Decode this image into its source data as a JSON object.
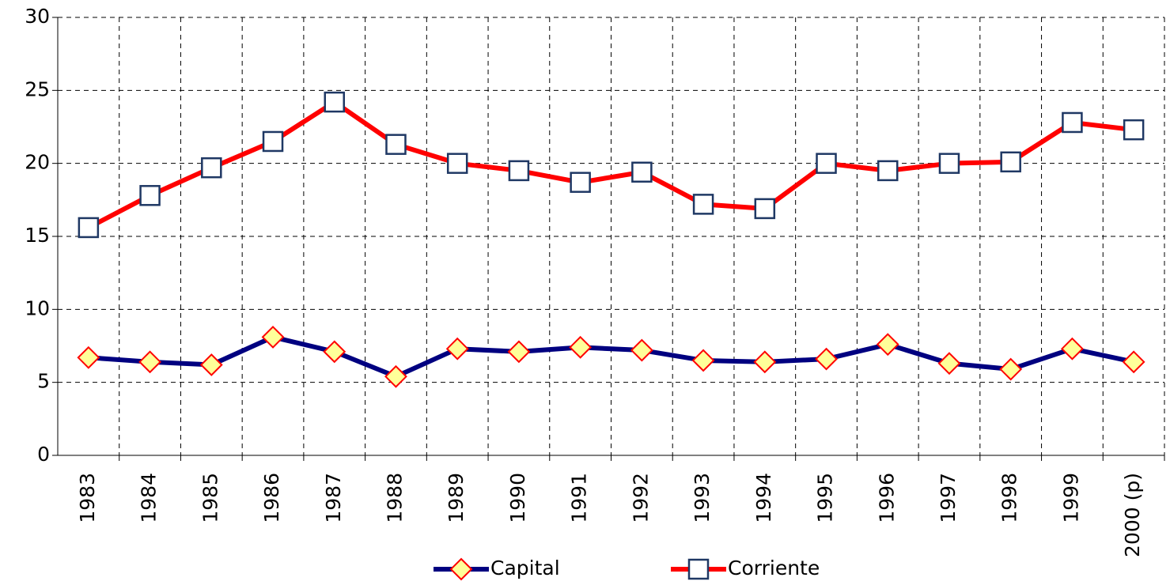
{
  "chart_data": {
    "type": "line",
    "categories": [
      "1983",
      "1984",
      "1985",
      "1986",
      "1987",
      "1988",
      "1989",
      "1990",
      "1991",
      "1992",
      "1993",
      "1994",
      "1995",
      "1996",
      "1997",
      "1998",
      "1999",
      "2000 (p)"
    ],
    "series": [
      {
        "name": "Capital",
        "color": "#000080",
        "marker": "diamond",
        "values": [
          6.7,
          6.4,
          6.2,
          8.1,
          7.1,
          5.4,
          7.3,
          7.1,
          7.4,
          7.2,
          6.5,
          6.4,
          6.6,
          7.6,
          6.3,
          5.9,
          7.3,
          6.4
        ]
      },
      {
        "name": "Corriente",
        "color": "#ff0000",
        "marker": "square",
        "values": [
          15.6,
          17.8,
          19.7,
          21.5,
          24.2,
          21.3,
          20.0,
          19.5,
          18.7,
          19.4,
          17.2,
          16.9,
          20.0,
          19.5,
          20.0,
          20.1,
          22.8,
          22.3
        ]
      }
    ],
    "ylim": [
      0,
      30
    ],
    "yticks": [
      0,
      5,
      10,
      15,
      20,
      25,
      30
    ],
    "grid": true,
    "legend": "bottom"
  }
}
